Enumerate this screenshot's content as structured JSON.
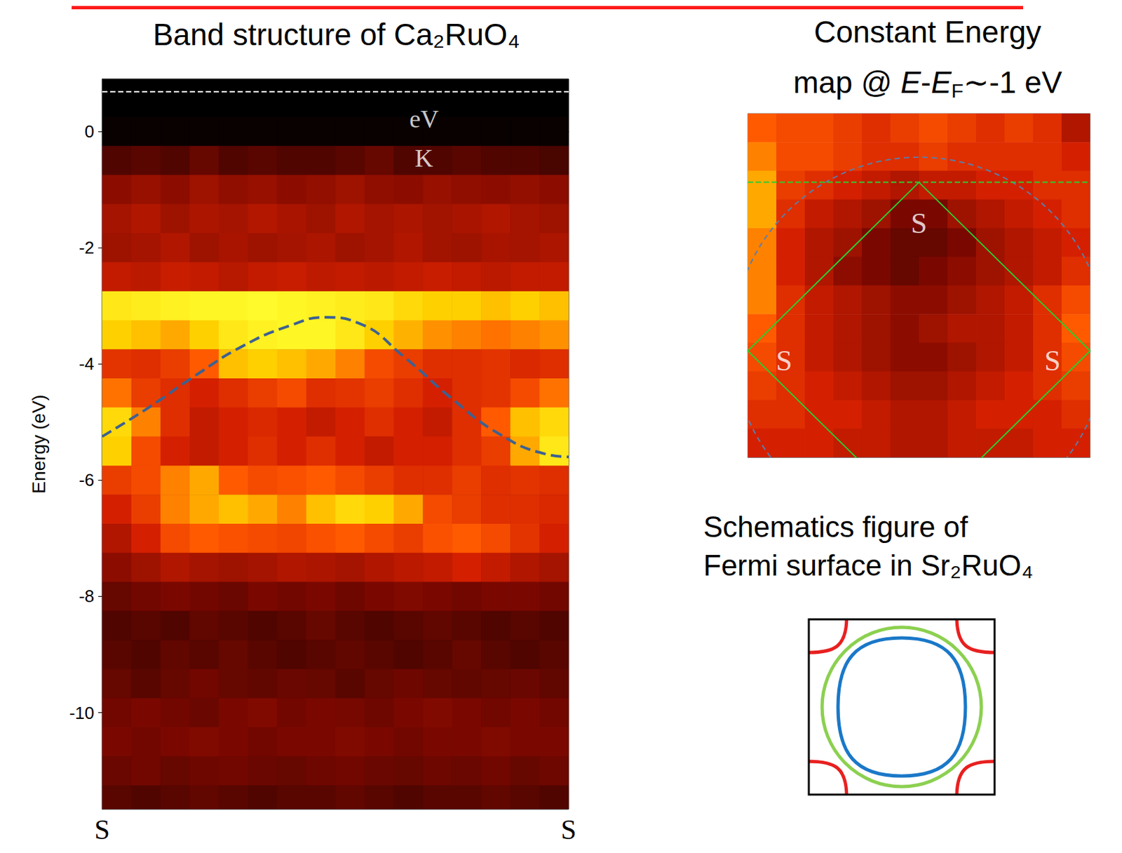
{
  "chart_data": [
    {
      "type": "heatmap",
      "title": "Band structure of Ca₂RuO₄",
      "y_label": "Energy (eV)",
      "xlim": [
        0,
        1
      ],
      "ylim": [
        -11.66,
        0.9
      ],
      "xticks": [
        {
          "value": 0,
          "label": "S"
        },
        {
          "value": 1,
          "label": "S"
        }
      ],
      "yticks": [
        0,
        -2,
        -4,
        -6,
        -8,
        -10
      ],
      "intensity_range": [
        0,
        1
      ],
      "x_edges": [
        0,
        0.0625,
        0.125,
        0.1875,
        0.25,
        0.3125,
        0.375,
        0.4375,
        0.5,
        0.5625,
        0.625,
        0.6875,
        0.75,
        0.8125,
        0.875,
        0.9375,
        1
      ],
      "y_edges": [
        0.75,
        0.25,
        -0.25,
        -0.75,
        -1.25,
        -1.75,
        -2.25,
        -2.75,
        -3.25,
        -3.75,
        -4.25,
        -4.75,
        -5.25,
        -5.75,
        -6.25,
        -6.75,
        -7.25,
        -7.75,
        -8.25,
        -8.75,
        -9.25,
        -9.75,
        -10.25,
        -10.75,
        -11.25,
        -11.75
      ],
      "cells": [
        [
          0,
          0,
          0,
          0,
          0,
          0,
          0,
          0,
          0,
          0,
          0,
          0,
          0,
          0,
          0,
          0
        ],
        [
          0.02,
          0.02,
          0.02,
          0.02,
          0.02,
          0.02,
          0.02,
          0.02,
          0.02,
          0.02,
          0.02,
          0.02,
          0.02,
          0.02,
          0.02,
          0.02
        ],
        [
          0.2,
          0.22,
          0.2,
          0.25,
          0.2,
          0.22,
          0.2,
          0.2,
          0.22,
          0.25,
          0.2,
          0.2,
          0.22,
          0.2,
          0.2,
          0.18
        ],
        [
          0.35,
          0.38,
          0.35,
          0.4,
          0.36,
          0.38,
          0.35,
          0.37,
          0.4,
          0.36,
          0.35,
          0.38,
          0.36,
          0.35,
          0.37,
          0.35
        ],
        [
          0.42,
          0.45,
          0.4,
          0.44,
          0.42,
          0.46,
          0.43,
          0.4,
          0.45,
          0.42,
          0.44,
          0.41,
          0.43,
          0.45,
          0.42,
          0.4
        ],
        [
          0.4,
          0.42,
          0.45,
          0.4,
          0.43,
          0.4,
          0.42,
          0.44,
          0.4,
          0.42,
          0.45,
          0.41,
          0.4,
          0.43,
          0.42,
          0.44
        ],
        [
          0.5,
          0.48,
          0.52,
          0.5,
          0.47,
          0.5,
          0.52,
          0.49,
          0.5,
          0.48,
          0.5,
          0.52,
          0.5,
          0.48,
          0.5,
          0.5
        ],
        [
          0.95,
          0.96,
          0.97,
          0.98,
          0.98,
          0.99,
          0.98,
          0.97,
          0.96,
          0.95,
          0.92,
          0.9,
          0.9,
          0.88,
          0.9,
          0.88
        ],
        [
          0.9,
          0.88,
          0.85,
          0.9,
          0.95,
          0.97,
          0.98,
          0.98,
          0.95,
          0.9,
          0.86,
          0.82,
          0.8,
          0.78,
          0.8,
          0.82
        ],
        [
          0.62,
          0.6,
          0.65,
          0.75,
          0.88,
          0.9,
          0.88,
          0.85,
          0.8,
          0.7,
          0.65,
          0.6,
          0.6,
          0.62,
          0.58,
          0.6
        ],
        [
          0.78,
          0.65,
          0.6,
          0.55,
          0.6,
          0.65,
          0.7,
          0.6,
          0.62,
          0.65,
          0.6,
          0.55,
          0.6,
          0.62,
          0.7,
          0.78
        ],
        [
          0.92,
          0.8,
          0.6,
          0.5,
          0.55,
          0.58,
          0.55,
          0.5,
          0.55,
          0.6,
          0.55,
          0.5,
          0.6,
          0.75,
          0.88,
          0.92
        ],
        [
          0.9,
          0.7,
          0.55,
          0.5,
          0.55,
          0.6,
          0.55,
          0.6,
          0.55,
          0.5,
          0.55,
          0.55,
          0.6,
          0.65,
          0.85,
          0.95
        ],
        [
          0.65,
          0.7,
          0.8,
          0.85,
          0.75,
          0.7,
          0.72,
          0.75,
          0.7,
          0.65,
          0.6,
          0.6,
          0.65,
          0.6,
          0.62,
          0.6
        ],
        [
          0.55,
          0.65,
          0.8,
          0.85,
          0.88,
          0.85,
          0.8,
          0.88,
          0.92,
          0.9,
          0.85,
          0.7,
          0.65,
          0.6,
          0.6,
          0.58
        ],
        [
          0.45,
          0.55,
          0.7,
          0.75,
          0.72,
          0.7,
          0.68,
          0.72,
          0.75,
          0.7,
          0.65,
          0.72,
          0.75,
          0.7,
          0.62,
          0.55
        ],
        [
          0.35,
          0.4,
          0.45,
          0.42,
          0.4,
          0.42,
          0.45,
          0.44,
          0.42,
          0.45,
          0.48,
          0.5,
          0.55,
          0.5,
          0.45,
          0.42
        ],
        [
          0.25,
          0.28,
          0.3,
          0.28,
          0.26,
          0.3,
          0.28,
          0.3,
          0.27,
          0.3,
          0.32,
          0.3,
          0.28,
          0.3,
          0.3,
          0.28
        ],
        [
          0.2,
          0.22,
          0.2,
          0.24,
          0.22,
          0.2,
          0.22,
          0.25,
          0.22,
          0.2,
          0.22,
          0.24,
          0.22,
          0.2,
          0.22,
          0.2
        ],
        [
          0.22,
          0.2,
          0.24,
          0.22,
          0.25,
          0.22,
          0.2,
          0.22,
          0.24,
          0.22,
          0.2,
          0.22,
          0.25,
          0.22,
          0.2,
          0.22
        ],
        [
          0.25,
          0.22,
          0.25,
          0.28,
          0.25,
          0.24,
          0.26,
          0.25,
          0.22,
          0.25,
          0.27,
          0.25,
          0.24,
          0.25,
          0.26,
          0.24
        ],
        [
          0.28,
          0.3,
          0.28,
          0.26,
          0.3,
          0.32,
          0.28,
          0.3,
          0.29,
          0.27,
          0.3,
          0.32,
          0.3,
          0.28,
          0.3,
          0.28
        ],
        [
          0.3,
          0.28,
          0.3,
          0.32,
          0.3,
          0.28,
          0.3,
          0.3,
          0.32,
          0.3,
          0.28,
          0.3,
          0.3,
          0.32,
          0.3,
          0.3
        ],
        [
          0.26,
          0.28,
          0.25,
          0.27,
          0.28,
          0.26,
          0.25,
          0.27,
          0.28,
          0.26,
          0.25,
          0.27,
          0.26,
          0.28,
          0.25,
          0.27
        ],
        [
          0.22,
          0.2,
          0.22,
          0.24,
          0.22,
          0.2,
          0.22,
          0.22,
          0.24,
          0.22,
          0.2,
          0.22,
          0.22,
          0.24,
          0.22,
          0.2
        ]
      ],
      "curve": {
        "x": [
          0,
          0.1,
          0.2,
          0.3,
          0.4,
          0.48,
          0.55,
          0.65,
          0.75,
          0.85,
          0.95,
          1
        ],
        "values": [
          -5.25,
          -4.75,
          -4.2,
          -3.7,
          -3.35,
          -3.2,
          -3.3,
          -3.9,
          -4.6,
          -5.2,
          -5.55,
          -5.6
        ],
        "color": "#3d6191",
        "line_style": "dashed"
      },
      "reference_line": {
        "value": 0.68,
        "color": "#ffffff",
        "line_style": "dashed"
      },
      "annotations": [
        {
          "text": "eV",
          "x": 0.69,
          "y": 0.22
        },
        {
          "text": "K",
          "x": 0.69,
          "y": -0.46
        }
      ]
    },
    {
      "type": "heatmap",
      "title_lines": [
        [
          {
            "text": "Constant Energy",
            "style": "plain"
          }
        ],
        [
          {
            "text": "map @ ",
            "style": "plain"
          },
          {
            "text": "E",
            "style": "italic"
          },
          {
            "text": "-",
            "style": "plain"
          },
          {
            "text": "E",
            "style": "italic"
          },
          {
            "text": "F",
            "style": "sub"
          },
          {
            "text": "∼-1 eV",
            "style": "plain"
          }
        ]
      ],
      "xlim": [
        0,
        1
      ],
      "ylim": [
        0,
        1
      ],
      "tick_labels": false,
      "intensity_range": [
        0,
        1
      ],
      "x_edges": [
        0,
        0.0833,
        0.1667,
        0.25,
        0.3333,
        0.4167,
        0.5,
        0.5833,
        0.6667,
        0.75,
        0.8333,
        0.9167,
        1
      ],
      "y_edges": [
        1,
        0.9167,
        0.8333,
        0.75,
        0.6667,
        0.5833,
        0.5,
        0.4167,
        0.3333,
        0.25,
        0.1667,
        0.0833,
        0
      ],
      "cells": [
        [
          0.75,
          0.7,
          0.7,
          0.65,
          0.6,
          0.65,
          0.7,
          0.65,
          0.6,
          0.65,
          0.6,
          0.45
        ],
        [
          0.8,
          0.7,
          0.7,
          0.65,
          0.6,
          0.6,
          0.65,
          0.6,
          0.6,
          0.6,
          0.6,
          0.55
        ],
        [
          0.85,
          0.65,
          0.6,
          0.55,
          0.5,
          0.45,
          0.5,
          0.5,
          0.55,
          0.55,
          0.6,
          0.6
        ],
        [
          0.85,
          0.6,
          0.5,
          0.45,
          0.4,
          0.3,
          0.3,
          0.4,
          0.45,
          0.5,
          0.55,
          0.6
        ],
        [
          0.8,
          0.55,
          0.45,
          0.4,
          0.3,
          0.25,
          0.25,
          0.3,
          0.4,
          0.45,
          0.5,
          0.55
        ],
        [
          0.8,
          0.55,
          0.45,
          0.35,
          0.3,
          0.25,
          0.3,
          0.35,
          0.4,
          0.45,
          0.5,
          0.6
        ],
        [
          0.8,
          0.6,
          0.5,
          0.45,
          0.4,
          0.35,
          0.35,
          0.4,
          0.45,
          0.5,
          0.6,
          0.7
        ],
        [
          0.75,
          0.6,
          0.5,
          0.45,
          0.4,
          0.35,
          0.4,
          0.45,
          0.45,
          0.5,
          0.6,
          0.75
        ],
        [
          0.7,
          0.6,
          0.5,
          0.45,
          0.4,
          0.35,
          0.35,
          0.4,
          0.45,
          0.5,
          0.6,
          0.7
        ],
        [
          0.65,
          0.6,
          0.55,
          0.5,
          0.45,
          0.4,
          0.4,
          0.45,
          0.5,
          0.55,
          0.6,
          0.65
        ],
        [
          0.6,
          0.6,
          0.55,
          0.55,
          0.5,
          0.45,
          0.45,
          0.5,
          0.55,
          0.55,
          0.55,
          0.6
        ],
        [
          0.55,
          0.55,
          0.55,
          0.5,
          0.5,
          0.45,
          0.45,
          0.5,
          0.5,
          0.5,
          0.55,
          0.55
        ]
      ],
      "lines": [
        {
          "points": [
            [
              0.5,
              0.8
            ],
            [
              1,
              0.31
            ],
            [
              0.5,
              -0.18
            ],
            [
              0,
              0.31
            ],
            [
              0.5,
              0.8
            ]
          ],
          "color": "#2ecc2e",
          "line_style": "solid"
        },
        {
          "points": [
            [
              0,
              0.8
            ],
            [
              1,
              0.8
            ]
          ],
          "color": "#2ecc2e",
          "line_style": "dashed"
        }
      ],
      "circle": {
        "center": [
          0.5,
          0.33
        ],
        "radius": 0.545,
        "color": "#5a7fa8",
        "line_style": "dashed"
      },
      "annotations": [
        {
          "text": "S",
          "x": 0.5,
          "y": 0.68
        },
        {
          "text": "S",
          "x": 0.106,
          "y": 0.28
        },
        {
          "text": "S",
          "x": 0.89,
          "y": 0.28
        }
      ]
    }
  ],
  "schematic": {
    "title_lines": [
      "Schematics figure of",
      "Fermi surface in Sr₂RuO₄"
    ],
    "shapes": [
      {
        "shape": "corner_arcs",
        "color": "#e82020"
      },
      {
        "shape": "circle",
        "color": "#8cd050"
      },
      {
        "shape": "rounded_square",
        "color": "#1a78c8"
      }
    ]
  }
}
